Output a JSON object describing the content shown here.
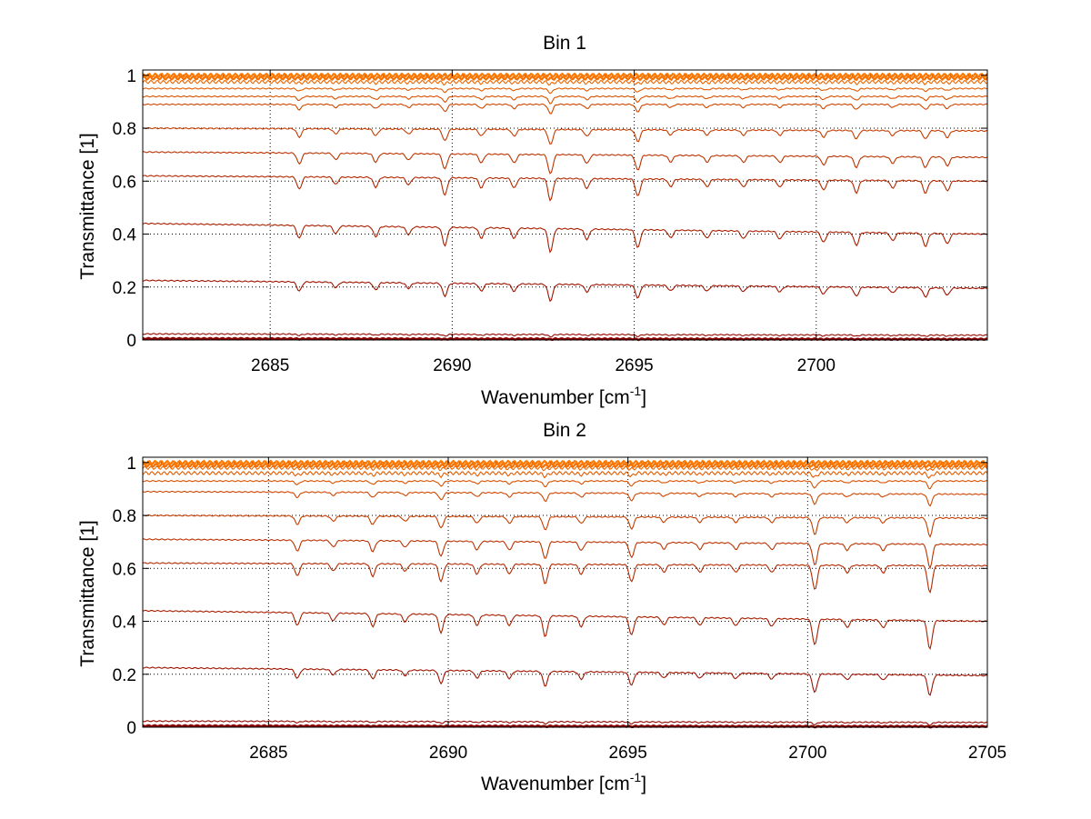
{
  "chart_data": [
    {
      "type": "line",
      "title": "Bin 1",
      "xlabel": "Wavenumber [cm",
      "xlabel_sup": "-1",
      "xlabel_end": "]",
      "ylabel": "Transmittance [1]",
      "xlim": [
        2681.5,
        2704.7
      ],
      "ylim": [
        0,
        1.02
      ],
      "xticks": [
        2685,
        2690,
        2695,
        2700
      ],
      "xtick_labels": [
        "2685",
        "2690",
        "2695",
        "2700"
      ],
      "yticks": [
        0,
        0.2,
        0.4,
        0.6,
        0.8,
        1
      ],
      "ytick_labels": [
        "0",
        "0.2",
        "0.4",
        "0.6",
        "0.8",
        "1"
      ],
      "grid": true,
      "grid_style": "dotted",
      "series_color_range": [
        "#8b0000",
        "#ff7a00"
      ],
      "series": [
        {
          "baseline_start": 0.005,
          "baseline_end": 0.003
        },
        {
          "baseline_start": 0.023,
          "baseline_end": 0.018
        },
        {
          "baseline_start": 0.225,
          "baseline_end": 0.195
        },
        {
          "baseline_start": 0.44,
          "baseline_end": 0.4
        },
        {
          "baseline_start": 0.62,
          "baseline_end": 0.6
        },
        {
          "baseline_start": 0.71,
          "baseline_end": 0.69
        },
        {
          "baseline_start": 0.8,
          "baseline_end": 0.79
        },
        {
          "baseline_start": 0.89,
          "baseline_end": 0.89
        },
        {
          "baseline_start": 0.92,
          "baseline_end": 0.92
        },
        {
          "baseline_start": 0.95,
          "baseline_end": 0.95
        },
        {
          "baseline_start": 0.975,
          "baseline_end": 0.975
        },
        {
          "baseline_start": 0.99,
          "baseline_end": 0.99
        },
        {
          "baseline_start": 1.0,
          "baseline_end": 1.0
        }
      ],
      "absorption_lines": [
        {
          "x": 2685.8,
          "depth": 0.05
        },
        {
          "x": 2686.8,
          "depth": 0.03
        },
        {
          "x": 2687.9,
          "depth": 0.04
        },
        {
          "x": 2688.8,
          "depth": 0.03
        },
        {
          "x": 2689.8,
          "depth": 0.07
        },
        {
          "x": 2690.8,
          "depth": 0.04
        },
        {
          "x": 2691.7,
          "depth": 0.04
        },
        {
          "x": 2692.7,
          "depth": 0.09
        },
        {
          "x": 2693.7,
          "depth": 0.04
        },
        {
          "x": 2695.1,
          "depth": 0.07
        },
        {
          "x": 2696.0,
          "depth": 0.03
        },
        {
          "x": 2697.0,
          "depth": 0.03
        },
        {
          "x": 2698.0,
          "depth": 0.03
        },
        {
          "x": 2699.0,
          "depth": 0.03
        },
        {
          "x": 2700.2,
          "depth": 0.04
        },
        {
          "x": 2701.1,
          "depth": 0.05
        },
        {
          "x": 2702.1,
          "depth": 0.03
        },
        {
          "x": 2703.0,
          "depth": 0.05
        },
        {
          "x": 2703.6,
          "depth": 0.04
        }
      ]
    },
    {
      "type": "line",
      "title": "Bin 2",
      "xlabel": "Wavenumber [cm",
      "xlabel_sup": "-1",
      "xlabel_end": "]",
      "ylabel": "Transmittance [1]",
      "xlim": [
        2681.5,
        2705.0
      ],
      "ylim": [
        0,
        1.02
      ],
      "xticks": [
        2685,
        2690,
        2695,
        2700,
        2705
      ],
      "xtick_labels": [
        "2685",
        "2690",
        "2695",
        "2700",
        "2705"
      ],
      "yticks": [
        0,
        0.2,
        0.4,
        0.6,
        0.8,
        1
      ],
      "ytick_labels": [
        "0",
        "0.2",
        "0.4",
        "0.6",
        "0.8",
        "1"
      ],
      "grid": true,
      "grid_style": "dotted",
      "series_color_range": [
        "#8b0000",
        "#ff7a00"
      ],
      "series": [
        {
          "baseline_start": 0.005,
          "baseline_end": 0.003
        },
        {
          "baseline_start": 0.023,
          "baseline_end": 0.018
        },
        {
          "baseline_start": 0.225,
          "baseline_end": 0.195
        },
        {
          "baseline_start": 0.44,
          "baseline_end": 0.4
        },
        {
          "baseline_start": 0.62,
          "baseline_end": 0.61
        },
        {
          "baseline_start": 0.71,
          "baseline_end": 0.69
        },
        {
          "baseline_start": 0.8,
          "baseline_end": 0.79
        },
        {
          "baseline_start": 0.89,
          "baseline_end": 0.88
        },
        {
          "baseline_start": 0.93,
          "baseline_end": 0.93
        },
        {
          "baseline_start": 0.96,
          "baseline_end": 0.96
        },
        {
          "baseline_start": 0.98,
          "baseline_end": 0.98
        },
        {
          "baseline_start": 0.99,
          "baseline_end": 0.99
        },
        {
          "baseline_start": 1.0,
          "baseline_end": 1.0
        }
      ],
      "absorption_lines": [
        {
          "x": 2685.8,
          "depth": 0.05
        },
        {
          "x": 2686.8,
          "depth": 0.03
        },
        {
          "x": 2687.9,
          "depth": 0.05
        },
        {
          "x": 2688.8,
          "depth": 0.03
        },
        {
          "x": 2689.8,
          "depth": 0.07
        },
        {
          "x": 2690.8,
          "depth": 0.04
        },
        {
          "x": 2691.7,
          "depth": 0.04
        },
        {
          "x": 2692.7,
          "depth": 0.08
        },
        {
          "x": 2693.7,
          "depth": 0.04
        },
        {
          "x": 2695.1,
          "depth": 0.07
        },
        {
          "x": 2696.0,
          "depth": 0.03
        },
        {
          "x": 2697.0,
          "depth": 0.03
        },
        {
          "x": 2698.0,
          "depth": 0.03
        },
        {
          "x": 2699.0,
          "depth": 0.03
        },
        {
          "x": 2700.2,
          "depth": 0.1
        },
        {
          "x": 2701.1,
          "depth": 0.03
        },
        {
          "x": 2702.1,
          "depth": 0.03
        },
        {
          "x": 2703.4,
          "depth": 0.11
        }
      ]
    }
  ]
}
